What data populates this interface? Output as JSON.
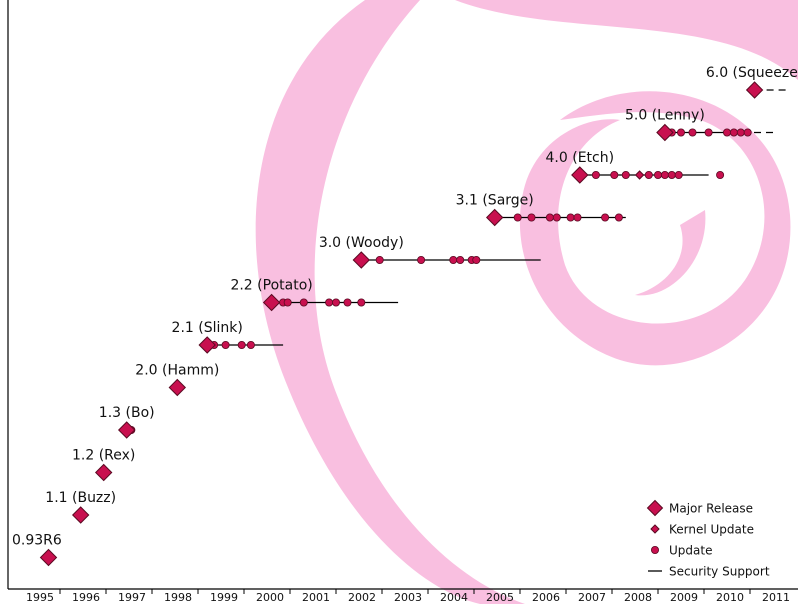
{
  "chart_data": {
    "type": "scatter",
    "title": "",
    "xlabel": "",
    "ylabel": "",
    "xlim": [
      1995,
      2011
    ],
    "x_ticks": [
      "1995",
      "1996",
      "1997",
      "1998",
      "1999",
      "2000",
      "2001",
      "2002",
      "2003",
      "2004",
      "2005",
      "2006",
      "2007",
      "2008",
      "2009",
      "2010",
      "2011"
    ],
    "grid": false,
    "legend_position": "bottom-right",
    "colors": {
      "marker_fill": "#c8104f",
      "marker_stroke": "#5a0a22",
      "support_line": "#000000",
      "swirl": "#f9bfe0"
    },
    "legend": [
      {
        "label": "Major Release",
        "marker": "diamond-large"
      },
      {
        "label": "Kernel Update",
        "marker": "diamond-small"
      },
      {
        "label": "Update",
        "marker": "circle"
      },
      {
        "label": "Security Support",
        "marker": "line"
      }
    ],
    "releases": [
      {
        "name": "0.93R6",
        "release": 1995.75,
        "updates": [],
        "kernel_updates": [],
        "support_end": null,
        "ongoing": false
      },
      {
        "name": "1.1 (Buzz)",
        "release": 1996.45,
        "updates": [],
        "kernel_updates": [],
        "support_end": null,
        "ongoing": false
      },
      {
        "name": "1.2 (Rex)",
        "release": 1996.95,
        "updates": [],
        "kernel_updates": [],
        "support_end": null,
        "ongoing": false
      },
      {
        "name": "1.3 (Bo)",
        "release": 1997.45,
        "updates": [
          1997.55
        ],
        "kernel_updates": [],
        "support_end": null,
        "ongoing": false
      },
      {
        "name": "2.0 (Hamm)",
        "release": 1998.55,
        "updates": [],
        "kernel_updates": [],
        "support_end": null,
        "ongoing": false
      },
      {
        "name": "2.1 (Slink)",
        "release": 1999.2,
        "updates": [
          1999.35,
          1999.6,
          1999.95,
          2000.15
        ],
        "kernel_updates": [],
        "support_end": 2000.85,
        "ongoing": false
      },
      {
        "name": "2.2 (Potato)",
        "release": 2000.6,
        "updates": [
          2000.85,
          2000.95,
          2001.3,
          2001.85,
          2002.0,
          2002.25,
          2002.55
        ],
        "kernel_updates": [],
        "support_end": 2003.35,
        "ongoing": false
      },
      {
        "name": "3.0 (Woody)",
        "release": 2002.55,
        "updates": [
          2002.95,
          2003.85,
          2004.55,
          2004.7,
          2004.95,
          2005.05
        ],
        "kernel_updates": [],
        "support_end": 2006.45,
        "ongoing": false
      },
      {
        "name": "3.1 (Sarge)",
        "release": 2005.45,
        "updates": [
          2005.95,
          2006.25,
          2006.65,
          2006.8,
          2007.1,
          2007.25,
          2007.85,
          2008.15
        ],
        "kernel_updates": [],
        "support_end": 2008.3,
        "ongoing": false
      },
      {
        "name": "4.0 (Etch)",
        "release": 2007.3,
        "updates": [
          2007.65,
          2008.05,
          2008.3,
          2008.8,
          2009.0,
          2009.15,
          2009.3,
          2009.45,
          2010.35
        ],
        "kernel_updates": [
          2008.6
        ],
        "support_end": 2010.1,
        "ongoing": false
      },
      {
        "name": "5.0 (Lenny)",
        "release": 2009.15,
        "updates": [
          2009.3,
          2009.5,
          2009.75,
          2010.1,
          2010.5,
          2010.65,
          2010.8,
          2010.95
        ],
        "kernel_updates": [],
        "support_end": 2011.0,
        "ongoing": true
      },
      {
        "name": "6.0 (Squeeze)",
        "release": 2011.1,
        "updates": [],
        "kernel_updates": [],
        "support_end": null,
        "ongoing": true
      }
    ]
  }
}
